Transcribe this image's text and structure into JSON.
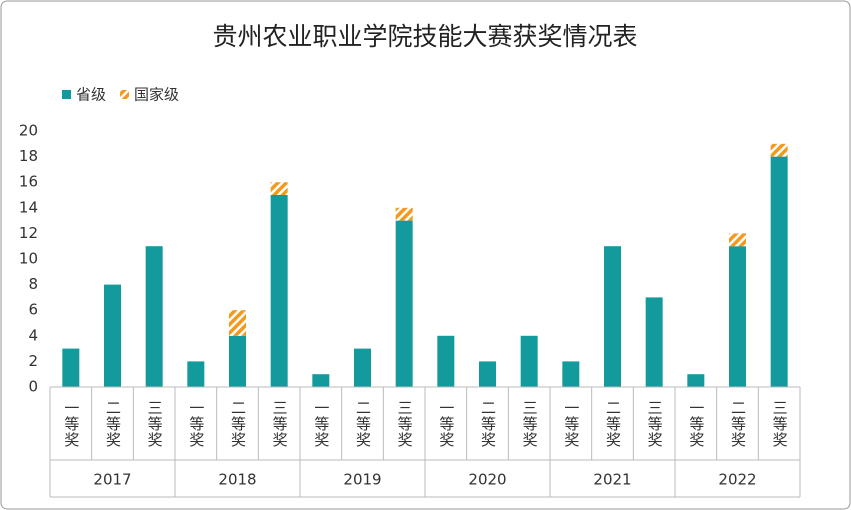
{
  "chart_data": {
    "type": "stacked_bar",
    "title": "贵州农业职业学院技能大赛获奖情况表",
    "categories": [
      "一等奖",
      "二等奖",
      "三等奖",
      "一等奖",
      "二等奖",
      "三等奖",
      "一等奖",
      "二等奖",
      "三等奖",
      "一等奖",
      "二等奖",
      "三等奖",
      "一等奖",
      "二等奖",
      "三等奖",
      "一等奖",
      "二等奖",
      "三等奖"
    ],
    "groups": [
      "2017",
      "2018",
      "2019",
      "2020",
      "2021",
      "2022"
    ],
    "series": [
      {
        "name": "省级",
        "color": "#139a9c",
        "values": [
          3,
          8,
          11,
          2,
          4,
          15,
          1,
          3,
          13,
          4,
          2,
          4,
          2,
          11,
          7,
          1,
          11,
          18
        ]
      },
      {
        "name": "国家级",
        "color": "#f39a1e",
        "values": [
          0,
          0,
          0,
          0,
          2,
          1,
          0,
          0,
          1,
          0,
          0,
          0,
          0,
          0,
          0,
          0,
          1,
          1
        ]
      }
    ],
    "ylim": [
      0,
      20
    ],
    "yticks": [
      0,
      2,
      4,
      6,
      8,
      10,
      12,
      14,
      16,
      18,
      20
    ],
    "legend": "top-left"
  }
}
